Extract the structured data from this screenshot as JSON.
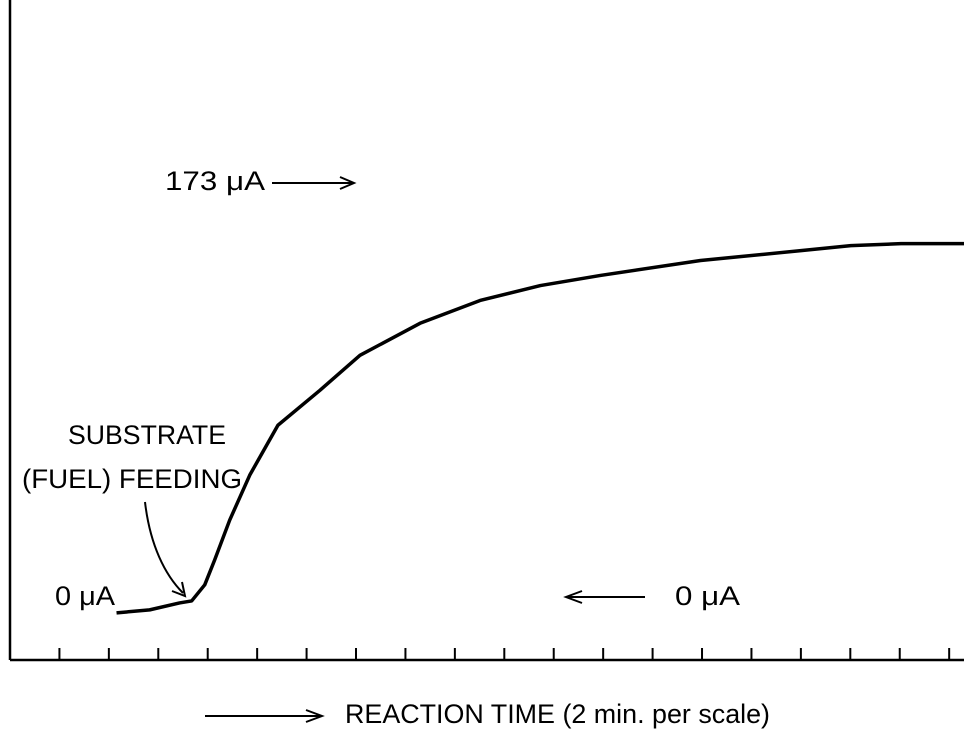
{
  "chart_data": {
    "type": "line",
    "xlabel": "REACTION TIME (2 min. per scale)",
    "annotations": [
      "173 μA",
      "0 μA",
      "SUBSTRATE",
      "(FUEL) FEEDING",
      "0 μA"
    ],
    "x": [
      2.31,
      3.65,
      4.86,
      5.35,
      5.88,
      6.28,
      6.89,
      7.7,
      8.84,
      10.54,
      12.16,
      14.59,
      17.02,
      19.46,
      21.89,
      25.94,
      30.0,
      32.02,
      34.05,
      36.6
    ],
    "series": [
      {
        "color": "#000000",
        "values": [
          0,
          1.2,
          4.0,
          4.8,
          11.3,
          21.3,
          37.4,
          55.5,
          75.6,
          89.7,
          103.8,
          116.7,
          125.9,
          131.9,
          136.0,
          142.0,
          146.0,
          148.0,
          148.8,
          148.8
        ]
      }
    ],
    "xlim": [
      -2,
      36.6
    ],
    "ylim": [
      -19,
      247
    ],
    "xticks": [
      0,
      2,
      4,
      6,
      8,
      10,
      12,
      14,
      16,
      18,
      20,
      22,
      24,
      26,
      28,
      30,
      32,
      34,
      36
    ]
  }
}
